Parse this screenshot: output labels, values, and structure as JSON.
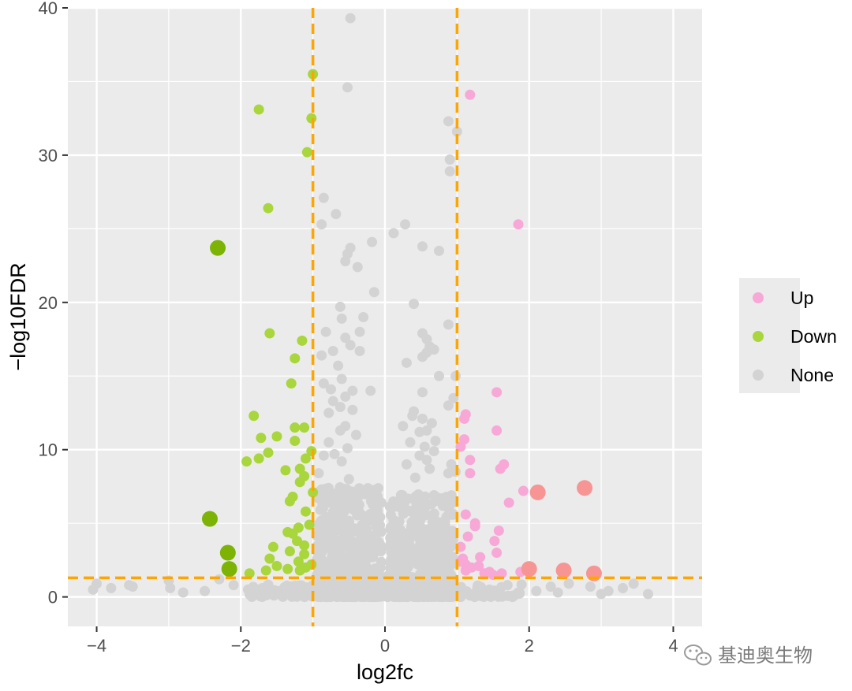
{
  "chart_data": {
    "type": "scatter",
    "title": "",
    "xlabel": "log2fc",
    "ylabel": "−log10FDR",
    "xlim": [
      -4.4,
      4.4
    ],
    "ylim": [
      -2,
      40
    ],
    "x_ticks": [
      -4,
      -2,
      0,
      2,
      4
    ],
    "x_tick_labels": [
      "−4",
      "−2",
      "0",
      "2",
      "4"
    ],
    "y_ticks": [
      0,
      10,
      20,
      30,
      40
    ],
    "y_tick_labels": [
      "0",
      "10",
      "20",
      "30",
      "40"
    ],
    "grid": true,
    "panel_background": "#ebebeb",
    "thresholds": {
      "vertical": [
        -1,
        1
      ],
      "horizontal": [
        1.3
      ],
      "color": "#ffa500",
      "style": "dashed"
    },
    "legend": {
      "position": "right",
      "entries": [
        {
          "label": "Up",
          "color": "#f7a8d6"
        },
        {
          "label": "Down",
          "color": "#a8d63c"
        },
        {
          "label": "None",
          "color": "#d3d3d3"
        }
      ]
    },
    "series": [
      {
        "name": "Up",
        "color": "#f7a8d6",
        "highlight_color": "#f79595",
        "points": [
          [
            1.18,
            34.1
          ],
          [
            1.85,
            25.3
          ],
          [
            1.12,
            12.4
          ],
          [
            1.55,
            13.9
          ],
          [
            1.55,
            11.3
          ],
          [
            1.65,
            9.0
          ],
          [
            1.6,
            8.7
          ],
          [
            1.18,
            9.3
          ],
          [
            1.18,
            8.4
          ],
          [
            1.1,
            12.1
          ],
          [
            1.1,
            10.7
          ],
          [
            1.05,
            10.2
          ],
          [
            1.92,
            7.2
          ],
          [
            1.72,
            6.4
          ],
          [
            1.58,
            4.5
          ],
          [
            1.52,
            3.8
          ],
          [
            1.55,
            3.0
          ],
          [
            1.25,
            5.0
          ],
          [
            1.25,
            4.8
          ],
          [
            1.12,
            5.6
          ],
          [
            1.15,
            4.1
          ],
          [
            1.05,
            3.4
          ],
          [
            1.08,
            2.6
          ],
          [
            1.12,
            2.2
          ],
          [
            1.2,
            2.0
          ],
          [
            1.3,
            2.1
          ],
          [
            1.32,
            2.7
          ],
          [
            1.45,
            1.7
          ],
          [
            1.38,
            1.6
          ],
          [
            1.5,
            1.5
          ],
          [
            1.12,
            1.8
          ],
          [
            1.05,
            2.4
          ],
          [
            1.62,
            1.6
          ],
          [
            1.88,
            1.7
          ]
        ],
        "highlighted": [
          [
            2.12,
            7.1
          ],
          [
            2.77,
            7.4
          ],
          [
            2.0,
            1.9
          ],
          [
            2.48,
            1.8
          ],
          [
            2.9,
            1.6
          ]
        ]
      },
      {
        "name": "Down",
        "color": "#a8d63c",
        "highlight_color": "#7cb305",
        "points": [
          [
            -1.0,
            35.5
          ],
          [
            -1.75,
            33.1
          ],
          [
            -1.02,
            32.5
          ],
          [
            -1.08,
            30.2
          ],
          [
            -1.62,
            26.4
          ],
          [
            -1.6,
            17.9
          ],
          [
            -1.15,
            17.4
          ],
          [
            -1.25,
            16.2
          ],
          [
            -1.3,
            14.5
          ],
          [
            -1.82,
            12.3
          ],
          [
            -1.25,
            11.5
          ],
          [
            -1.12,
            11.5
          ],
          [
            -1.5,
            10.9
          ],
          [
            -1.72,
            10.8
          ],
          [
            -1.25,
            10.6
          ],
          [
            -1.62,
            9.8
          ],
          [
            -1.1,
            9.4
          ],
          [
            -1.92,
            9.2
          ],
          [
            -1.75,
            9.4
          ],
          [
            -1.38,
            8.6
          ],
          [
            -1.18,
            8.7
          ],
          [
            -1.12,
            8.2
          ],
          [
            -1.18,
            7.8
          ],
          [
            -1.28,
            6.8
          ],
          [
            -1.32,
            6.5
          ],
          [
            -1.1,
            5.8
          ],
          [
            -1.2,
            4.7
          ],
          [
            -1.35,
            4.4
          ],
          [
            -1.28,
            4.3
          ],
          [
            -1.12,
            3.5
          ],
          [
            -1.22,
            3.8
          ],
          [
            -1.32,
            3.1
          ],
          [
            -1.55,
            3.4
          ],
          [
            -1.12,
            2.9
          ],
          [
            -1.6,
            2.6
          ],
          [
            -1.5,
            2.1
          ],
          [
            -1.35,
            1.9
          ],
          [
            -1.2,
            2.4
          ],
          [
            -1.1,
            2.0
          ],
          [
            -1.02,
            2.2
          ],
          [
            -1.05,
            4.9
          ],
          [
            -1.0,
            7.1
          ],
          [
            -1.02,
            9.9
          ],
          [
            -1.18,
            1.8
          ],
          [
            -1.88,
            1.6
          ],
          [
            -1.65,
            1.8
          ]
        ],
        "highlighted": [
          [
            -2.32,
            23.7
          ],
          [
            -2.43,
            5.3
          ],
          [
            -2.18,
            3.0
          ],
          [
            -2.16,
            1.9
          ]
        ]
      },
      {
        "name": "None",
        "color": "#d3d3d3",
        "points": [
          [
            -0.48,
            39.3
          ],
          [
            -0.52,
            34.6
          ],
          [
            -0.85,
            27.1
          ],
          [
            -0.68,
            26.0
          ],
          [
            -0.88,
            25.3
          ],
          [
            -0.52,
            23.3
          ],
          [
            -0.55,
            22.8
          ],
          [
            -0.38,
            22.4
          ],
          [
            -0.18,
            24.1
          ],
          [
            -0.48,
            23.7
          ],
          [
            -0.15,
            20.7
          ],
          [
            -0.3,
            19.0
          ],
          [
            -0.62,
            19.7
          ],
          [
            -0.6,
            18.9
          ],
          [
            -0.82,
            18.0
          ],
          [
            -0.35,
            18.0
          ],
          [
            -0.55,
            17.6
          ],
          [
            -0.72,
            16.7
          ],
          [
            -0.48,
            17.1
          ],
          [
            -0.35,
            16.7
          ],
          [
            -0.88,
            16.4
          ],
          [
            -0.65,
            15.7
          ],
          [
            -0.6,
            14.8
          ],
          [
            -0.85,
            14.5
          ],
          [
            -0.75,
            14.1
          ],
          [
            -0.45,
            14.0
          ],
          [
            -0.2,
            14.0
          ],
          [
            -0.55,
            13.6
          ],
          [
            -0.72,
            13.3
          ],
          [
            -0.45,
            12.7
          ],
          [
            -0.62,
            12.9
          ],
          [
            -0.78,
            12.5
          ],
          [
            -0.55,
            11.6
          ],
          [
            -0.62,
            11.3
          ],
          [
            -0.4,
            11.0
          ],
          [
            -0.78,
            10.5
          ],
          [
            -0.52,
            10.1
          ],
          [
            -0.7,
            9.7
          ],
          [
            -0.85,
            9.6
          ],
          [
            -0.6,
            9.2
          ],
          [
            -0.92,
            8.4
          ],
          [
            -0.5,
            8.0
          ],
          [
            -0.88,
            7.3
          ],
          [
            0.12,
            24.7
          ],
          [
            0.28,
            25.3
          ],
          [
            0.52,
            23.8
          ],
          [
            0.75,
            23.5
          ],
          [
            0.4,
            19.9
          ],
          [
            0.88,
            32.3
          ],
          [
            1.0,
            31.6
          ],
          [
            0.9,
            29.7
          ],
          [
            0.9,
            28.9
          ],
          [
            0.88,
            18.5
          ],
          [
            0.52,
            17.9
          ],
          [
            0.58,
            17.5
          ],
          [
            0.62,
            17.0
          ],
          [
            0.58,
            16.6
          ],
          [
            0.68,
            16.8
          ],
          [
            0.52,
            16.3
          ],
          [
            0.75,
            15.0
          ],
          [
            0.98,
            15.0
          ],
          [
            0.3,
            15.9
          ],
          [
            0.95,
            13.5
          ],
          [
            0.52,
            13.9
          ],
          [
            0.88,
            13.0
          ],
          [
            0.4,
            12.6
          ],
          [
            0.38,
            12.3
          ],
          [
            0.52,
            12.1
          ],
          [
            0.65,
            11.8
          ],
          [
            0.25,
            11.6
          ],
          [
            0.48,
            11.2
          ],
          [
            0.58,
            11.3
          ],
          [
            0.7,
            10.6
          ],
          [
            0.35,
            10.5
          ],
          [
            0.55,
            10.2
          ],
          [
            0.68,
            9.9
          ],
          [
            0.48,
            9.6
          ],
          [
            0.58,
            9.3
          ],
          [
            0.3,
            9.0
          ],
          [
            0.62,
            8.7
          ],
          [
            0.92,
            9.0
          ],
          [
            0.88,
            8.4
          ],
          [
            0.42,
            8.1
          ],
          [
            0.98,
            8.5
          ],
          [
            -4.0,
            0.9
          ],
          [
            -3.8,
            0.6
          ],
          [
            -3.5,
            0.7
          ],
          [
            -3.0,
            1.1
          ],
          [
            -2.98,
            0.6
          ],
          [
            -2.8,
            0.3
          ],
          [
            -2.3,
            1.2
          ],
          [
            -2.1,
            0.8
          ],
          [
            -1.9,
            0.5
          ],
          [
            -4.05,
            0.5
          ],
          [
            -3.55,
            0.8
          ],
          [
            -2.5,
            0.4
          ],
          [
            -1.7,
            0.6
          ],
          [
            -1.5,
            0.4
          ],
          [
            -1.3,
            0.7
          ],
          [
            1.45,
            0.5
          ],
          [
            1.7,
            0.8
          ],
          [
            2.3,
            0.7
          ],
          [
            2.4,
            0.3
          ],
          [
            2.55,
            0.9
          ],
          [
            2.85,
            0.7
          ],
          [
            3.0,
            0.2
          ],
          [
            3.1,
            0.4
          ],
          [
            3.3,
            0.6
          ],
          [
            3.65,
            0.2
          ],
          [
            2.1,
            0.4
          ],
          [
            1.85,
            0.3
          ],
          [
            3.45,
            0.9
          ]
        ],
        "cloud": {
          "x_range": [
            -1.0,
            1.0
          ],
          "y_range": [
            0,
            7
          ],
          "bands": [
            {
              "x_range": [
                -0.95,
                -0.05
              ],
              "y_range": [
                0,
                7.5
              ],
              "count": 520
            },
            {
              "x_range": [
                0.05,
                0.95
              ],
              "y_range": [
                0,
                7.0
              ],
              "count": 480
            },
            {
              "x_range": [
                -0.95,
                0.95
              ],
              "y_range": [
                0,
                1.5
              ],
              "count": 380
            },
            {
              "x_range": [
                -1.9,
                1.9
              ],
              "y_range": [
                0,
                0.9
              ],
              "count": 160
            }
          ]
        }
      }
    ],
    "point_radius": 6.5,
    "highlight_radius": 10
  },
  "watermark": {
    "text": "基迪奥生物",
    "icon": "wechat-icon"
  }
}
